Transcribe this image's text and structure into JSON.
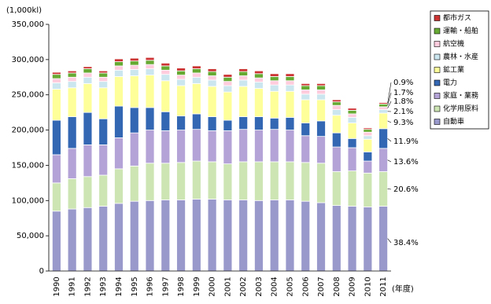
{
  "chart_data": {
    "type": "stacked_bar",
    "unit_label": "(1,000kl)",
    "x_label": "(年度)",
    "categories": [
      "1990",
      "1991",
      "1992",
      "1993",
      "1994",
      "1995",
      "1996",
      "1997",
      "1998",
      "1999",
      "2000",
      "2001",
      "2002",
      "2003",
      "2004",
      "2005",
      "2006",
      "2007",
      "2008",
      "2009",
      "2010",
      "2011"
    ],
    "series": [
      {
        "name": "自動車",
        "color": "#9999cc",
        "share": "38.4%",
        "values": [
          85000,
          88000,
          90000,
          92000,
          96000,
          99000,
          100000,
          101000,
          101000,
          102000,
          102000,
          101000,
          101000,
          100000,
          101000,
          101000,
          99000,
          97000,
          93000,
          92000,
          91000,
          92000
        ]
      },
      {
        "name": "化学用原料",
        "color": "#cce5b3",
        "share": "20.6%",
        "values": [
          40000,
          43000,
          44000,
          44000,
          49000,
          50000,
          53000,
          52000,
          53000,
          54000,
          53000,
          51000,
          54000,
          55000,
          54000,
          54000,
          55000,
          56000,
          48000,
          50000,
          48000,
          49000
        ]
      },
      {
        "name": "家庭・業務",
        "color": "#b3a3d6",
        "share": "13.6%",
        "values": [
          40000,
          43000,
          45000,
          43000,
          44000,
          47000,
          47000,
          46000,
          46000,
          45000,
          44000,
          47000,
          46000,
          45000,
          46000,
          45000,
          38000,
          38000,
          35000,
          33000,
          17000,
          33000
        ]
      },
      {
        "name": "電力",
        "color": "#3366b3",
        "share": "11.9%",
        "values": [
          49000,
          45000,
          46000,
          37000,
          45000,
          36000,
          32000,
          27000,
          20000,
          22000,
          20000,
          15000,
          18000,
          19000,
          16000,
          18000,
          18000,
          22000,
          20000,
          13000,
          13000,
          28000
        ]
      },
      {
        "name": "鉱工業",
        "color": "#ffff99",
        "share": "9.3%",
        "values": [
          44000,
          41000,
          41000,
          44000,
          42000,
          45000,
          46000,
          44000,
          43000,
          43000,
          43000,
          40000,
          43000,
          40000,
          38000,
          37000,
          33000,
          30000,
          25000,
          22000,
          18000,
          22000
        ]
      },
      {
        "name": "農林・水産",
        "color": "#cce6f0",
        "share": "2.1%",
        "values": [
          9000,
          9000,
          9000,
          9000,
          9000,
          9000,
          9000,
          9000,
          9000,
          9000,
          9000,
          9000,
          9000,
          9000,
          9000,
          9000,
          8000,
          8000,
          8000,
          8000,
          5000,
          5000
        ]
      },
      {
        "name": "航空機",
        "color": "#ffccdd",
        "share": "1.8%",
        "values": [
          6000,
          6000,
          6000,
          6000,
          6000,
          6000,
          6000,
          6000,
          6000,
          6000,
          6000,
          6000,
          6000,
          6000,
          6000,
          6000,
          6000,
          6000,
          6000,
          5000,
          5000,
          4000
        ]
      },
      {
        "name": "運輸・船舶",
        "color": "#66aa33",
        "share": "1.7%",
        "values": [
          6000,
          6000,
          6000,
          6000,
          6000,
          6000,
          6000,
          6000,
          6000,
          6000,
          6000,
          6000,
          6000,
          6000,
          6000,
          6000,
          6000,
          6000,
          5000,
          5000,
          4000,
          4000
        ]
      },
      {
        "name": "都市ガス",
        "color": "#cc3333",
        "share": "0.9%",
        "values": [
          3000,
          3000,
          3000,
          3000,
          4000,
          4000,
          4000,
          4000,
          4000,
          4000,
          4000,
          4000,
          4000,
          4000,
          4000,
          4000,
          3000,
          3000,
          3000,
          3000,
          2000,
          2000
        ]
      }
    ],
    "ylim": [
      0,
      350000
    ],
    "yticks": [
      0,
      {
        "value": 50000,
        "label": "50,000"
      },
      {
        "value": 100000,
        "label": "100,000"
      },
      {
        "value": 150000,
        "label": "150,000"
      },
      {
        "value": 200000,
        "label": "200,000"
      },
      {
        "value": 250000,
        "label": "250,000"
      },
      {
        "value": 300000,
        "label": "300,000"
      },
      {
        "value": 350000,
        "label": "350,000"
      }
    ],
    "grid": false
  }
}
